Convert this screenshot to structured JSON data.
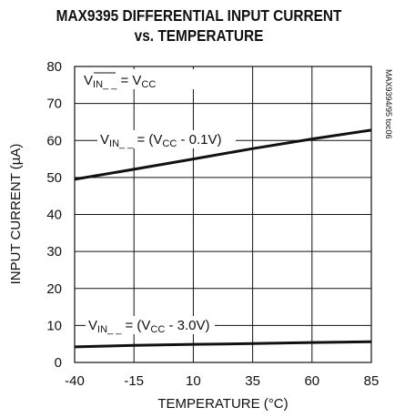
{
  "chart_data": {
    "type": "line",
    "title": [
      "MAX9395 DIFFERENTIAL INPUT CURRENT",
      "vs. TEMPERATURE"
    ],
    "xlabel": "TEMPERATURE (°C)",
    "ylabel": "INPUT CURRENT (µA)",
    "xlim": [
      -40,
      85
    ],
    "ylim": [
      0,
      80
    ],
    "x_ticks": [
      "-40",
      "-15",
      "10",
      "35",
      "60",
      "85"
    ],
    "y_ticks": [
      "0",
      "10",
      "20",
      "30",
      "40",
      "50",
      "60",
      "70",
      "80"
    ],
    "grid": true,
    "series": [
      {
        "name": "V_IN__ = (V_CC - 0.1V)",
        "x": [
          -40,
          -15,
          10,
          35,
          60,
          85
        ],
        "y": [
          49.5,
          52.2,
          55.0,
          57.8,
          60.4,
          62.8
        ]
      },
      {
        "name": "V_IN__ = (V_CC - 3.0V)",
        "x": [
          -40,
          -15,
          10,
          35,
          60,
          85
        ],
        "y": [
          4.2,
          4.6,
          4.9,
          5.1,
          5.4,
          5.6
        ]
      }
    ],
    "annotations": {
      "condition": {
        "main": "V",
        "sub_over": "IN_ _",
        "mid": " = V",
        "sub": "CC"
      },
      "curve1": {
        "v": "V",
        "in": "IN_ _",
        "eq": " = (V",
        "cc": "CC",
        "rest": " - 0.1V)"
      },
      "curve2": {
        "v": "V",
        "in": "IN_ _",
        "eq": " = (V",
        "cc": "CC",
        "rest": " - 3.0V)"
      }
    },
    "side_note": "MAX9394/95 toc06"
  }
}
